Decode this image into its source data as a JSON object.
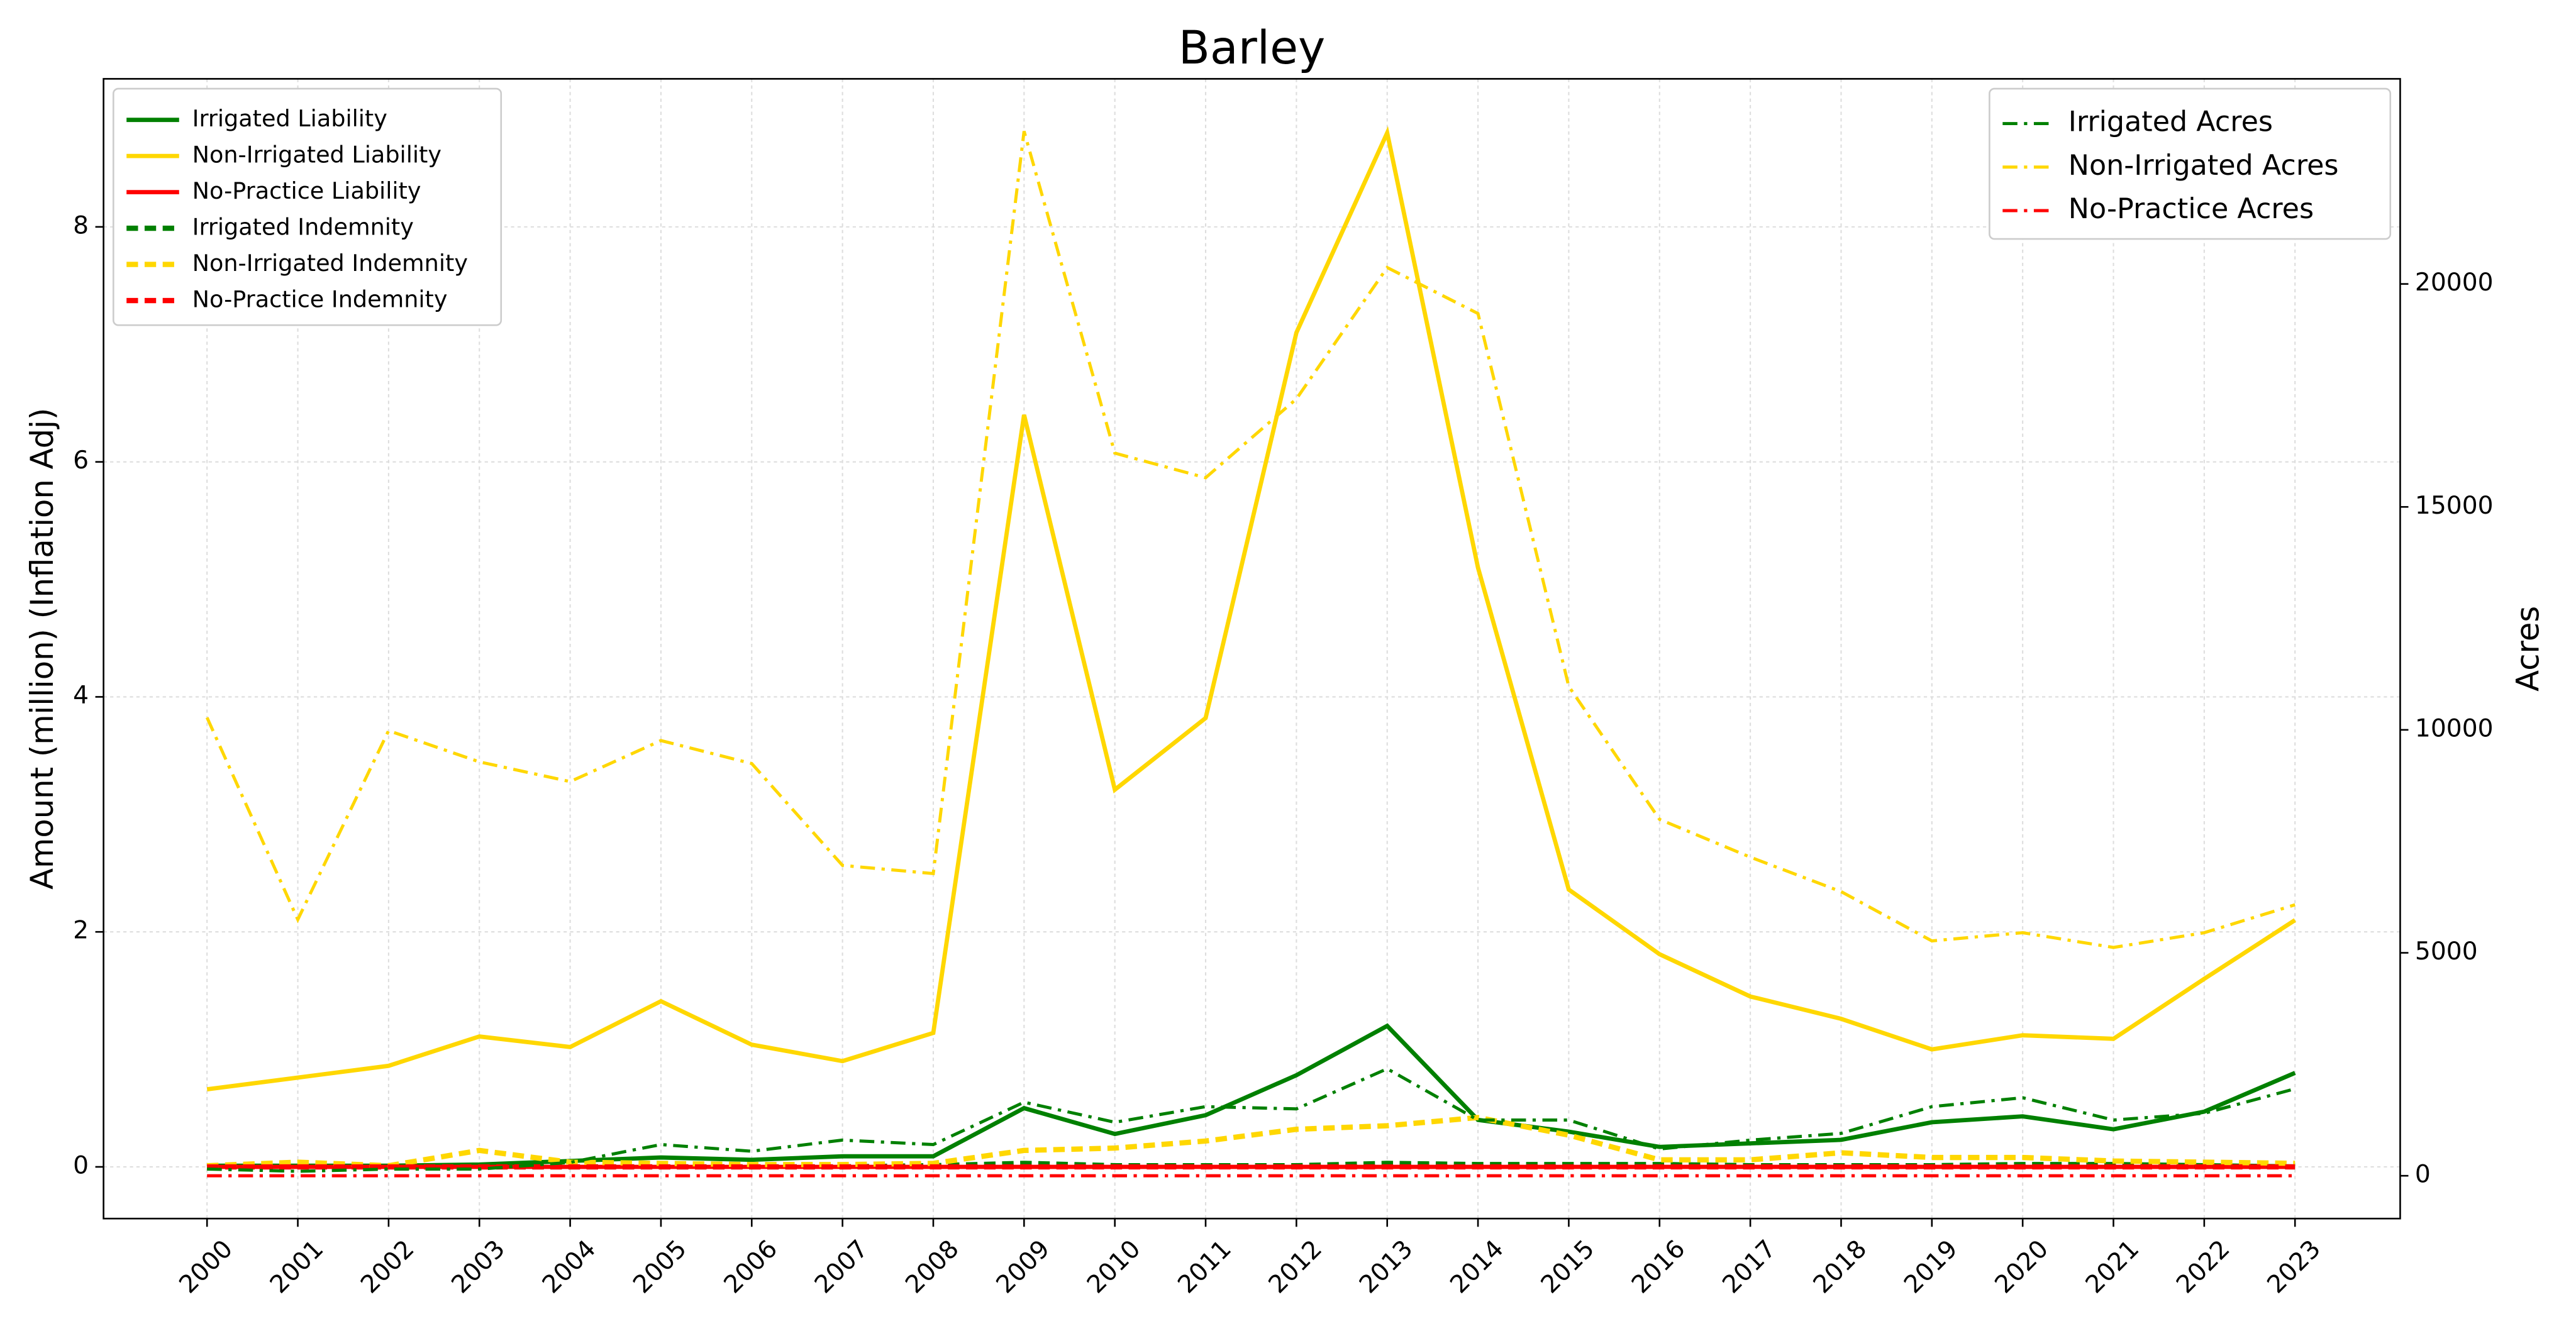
{
  "chart_data": {
    "type": "line",
    "title": "Barley",
    "y_label": "Amount (million) (Inflation Adj)",
    "y2_label": "Acres",
    "categories": [
      "2000",
      "2001",
      "2002",
      "2003",
      "2004",
      "2005",
      "2006",
      "2007",
      "2008",
      "2009",
      "2010",
      "2011",
      "2012",
      "2013",
      "2014",
      "2015",
      "2016",
      "2017",
      "2018",
      "2019",
      "2020",
      "2021",
      "2022",
      "2023"
    ],
    "ylim": [
      -0.44,
      9.26
    ],
    "yticks": [
      0,
      2,
      4,
      6,
      8
    ],
    "y2lim": [
      -960,
      24600
    ],
    "y2ticks": [
      0,
      5000,
      10000,
      15000,
      20000
    ],
    "grid": true,
    "legend": "upper left",
    "legend2": "upper right",
    "series": [
      {
        "name": "Irrigated Liability",
        "color": "#008000",
        "linestyle": "solid",
        "values": [
          0.01,
          0.01,
          0.01,
          0.02,
          0.05,
          0.08,
          0.06,
          0.09,
          0.09,
          0.5,
          0.28,
          0.44,
          0.78,
          1.2,
          0.4,
          0.3,
          0.17,
          0.2,
          0.23,
          0.38,
          0.43,
          0.32,
          0.47,
          0.8
        ]
      },
      {
        "name": "Non-Irrigated Liability",
        "color": "#ffd700",
        "linestyle": "solid",
        "values": [
          0.66,
          0.76,
          0.86,
          1.11,
          1.02,
          1.41,
          1.04,
          0.9,
          1.14,
          6.4,
          3.21,
          3.82,
          7.1,
          8.8,
          5.1,
          2.36,
          1.81,
          1.45,
          1.26,
          1.0,
          1.12,
          1.09,
          1.6,
          2.1
        ]
      },
      {
        "name": "No-Practice Liability",
        "color": "#ff0000",
        "linestyle": "solid",
        "values": [
          0,
          0,
          0,
          0,
          0,
          0,
          0,
          0,
          0,
          0,
          0,
          0,
          0,
          0,
          0,
          0,
          0,
          0,
          0,
          0,
          0,
          0,
          0,
          0
        ]
      },
      {
        "name": "Irrigated Indemnity",
        "color": "#008000",
        "linestyle": "dashed",
        "values": [
          0,
          0,
          0,
          0,
          0,
          0,
          0,
          0,
          0.01,
          0.03,
          0.01,
          0.01,
          0.01,
          0.03,
          0.02,
          0.02,
          0.02,
          0.01,
          0.01,
          0.01,
          0.02,
          0.02,
          0.01,
          0
        ]
      },
      {
        "name": "Non-Irrigated Indemnity",
        "color": "#ffd700",
        "linestyle": "dashed",
        "values": [
          0.01,
          0.04,
          0.01,
          0.14,
          0.04,
          0.03,
          0.02,
          0.02,
          0.03,
          0.14,
          0.16,
          0.22,
          0.32,
          0.35,
          0.42,
          0.27,
          0.06,
          0.06,
          0.12,
          0.08,
          0.08,
          0.05,
          0.04,
          0.03
        ]
      },
      {
        "name": "No-Practice Indemnity",
        "color": "#ff0000",
        "linestyle": "dashed",
        "values": [
          0,
          0,
          0,
          0,
          0,
          0,
          0,
          0,
          0,
          0,
          0,
          0,
          0,
          0,
          0,
          0,
          0,
          0,
          0,
          0,
          0,
          0,
          0,
          0
        ]
      },
      {
        "name": "Irrigated Acres",
        "color": "#008000",
        "linestyle": "dashdot",
        "axis": "y2",
        "values": [
          150,
          100,
          150,
          150,
          300,
          700,
          550,
          800,
          700,
          1650,
          1200,
          1550,
          1500,
          2400,
          1250,
          1250,
          600,
          800,
          950,
          1550,
          1750,
          1250,
          1400,
          1950
        ]
      },
      {
        "name": "Non-Irrigated Acres",
        "color": "#ffd700",
        "linestyle": "dashdot",
        "axis": "y2",
        "values": [
          10276,
          5746,
          9982,
          9282,
          8840,
          9760,
          9245,
          6960,
          6777,
          23425,
          16206,
          15654,
          17422,
          20368,
          19337,
          10976,
          7993,
          7145,
          6372,
          5267,
          5451,
          5120,
          5451,
          6077
        ]
      },
      {
        "name": "No-Practice Acres",
        "color": "#ff0000",
        "linestyle": "dashdot",
        "axis": "y2",
        "values": [
          0,
          0,
          0,
          0,
          0,
          0,
          0,
          0,
          0,
          0,
          0,
          0,
          0,
          0,
          0,
          0,
          0,
          0,
          0,
          0,
          0,
          0,
          0,
          0
        ]
      }
    ]
  }
}
